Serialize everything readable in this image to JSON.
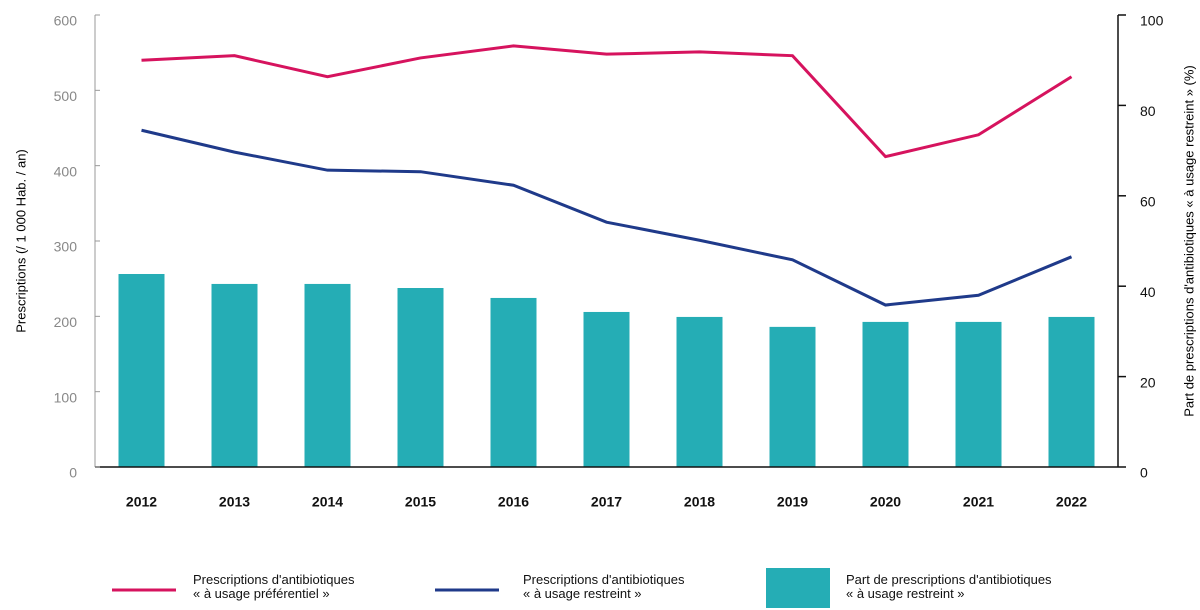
{
  "chart_data": {
    "type": "bar_line",
    "ylabel": "Prescriptions (/ 1 000 Hab. / an)",
    "y2label": "Part de prescriptions d'antibiotiques « à usage restreint » (%)",
    "categories": [
      "2012",
      "2013",
      "2014",
      "2015",
      "2016",
      "2017",
      "2018",
      "2019",
      "2020",
      "2021",
      "2022"
    ],
    "ylim": [
      0,
      600
    ],
    "yticks": [
      0,
      100,
      200,
      300,
      400,
      500,
      600
    ],
    "y2lim": [
      0,
      100
    ],
    "y2ticks": [
      0,
      20,
      40,
      60,
      80,
      100
    ],
    "series": [
      {
        "name": "Prescriptions d'antibiotiques\n« à usage préférentiel »",
        "type": "line",
        "color": "#d6135e",
        "axis": "y",
        "values": [
          540,
          546,
          518,
          543,
          559,
          548,
          551,
          546,
          412,
          441,
          518
        ]
      },
      {
        "name": "Prescriptions d'antibiotiques\n« à usage restreint »",
        "type": "line",
        "color": "#1f3a8a",
        "axis": "y",
        "values": [
          447,
          418,
          394,
          392,
          374,
          325,
          301,
          275,
          215,
          228,
          279
        ]
      },
      {
        "name": "Part de prescriptions d'antibiotiques\n« à usage restreint »",
        "type": "bar",
        "color": "#25adb5",
        "axis": "y2",
        "values": [
          42.7,
          40.5,
          40.5,
          39.6,
          37.4,
          34.3,
          33.2,
          31,
          32.1,
          32.1,
          33.2
        ]
      }
    ]
  }
}
